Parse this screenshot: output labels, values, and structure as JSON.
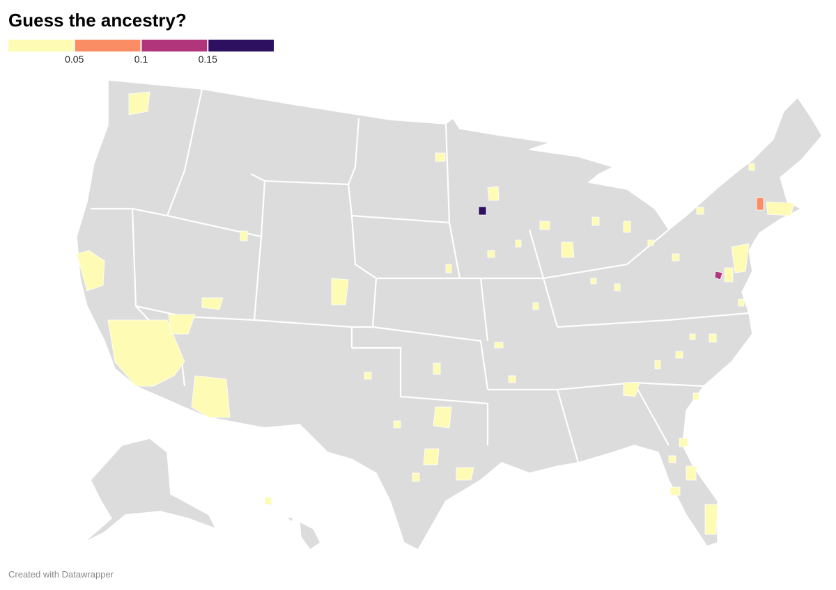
{
  "header": {
    "title": "Guess the ancestry?"
  },
  "legend": {
    "colors": [
      "#fdfbb4",
      "#fb8d64",
      "#b0357b",
      "#2d1160"
    ],
    "ticks": [
      0.05,
      0.1,
      0.15
    ]
  },
  "footer": {
    "text": "Created with Datawrapper"
  }
}
